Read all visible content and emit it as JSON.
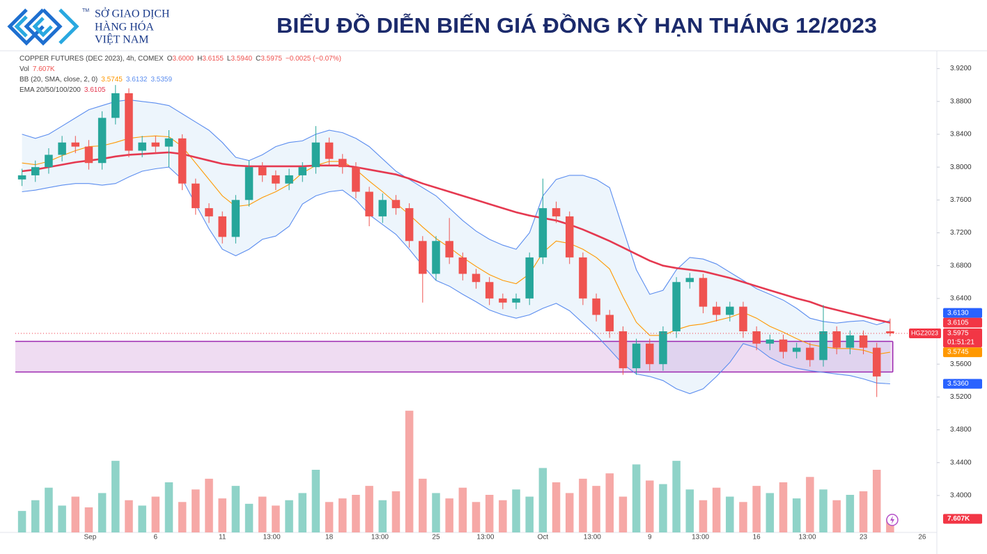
{
  "header": {
    "brand": [
      "SỞ GIAO DỊCH",
      "HÀNG HÓA",
      "VIỆT NAM"
    ],
    "tm": "TM",
    "title": "BIỂU ĐỒ DIỄN BIẾN GIÁ ĐỒNG KỲ HẠN THÁNG 12/2023"
  },
  "chart_data": {
    "type": "candlestick",
    "legend_lines": [
      {
        "label": "COPPER FUTURES (DEC 2023), 4h, COMEX",
        "items": [
          {
            "key": "O",
            "value": "3.6000"
          },
          {
            "key": "H",
            "value": "3.6155"
          },
          {
            "key": "L",
            "value": "3.5940"
          },
          {
            "key": "C",
            "value": "3.5975"
          },
          {
            "key": "",
            "value": "−0.0025 (−0.07%)"
          }
        ]
      },
      {
        "label": "Vol",
        "items": [
          {
            "key": "",
            "value": "7.607K"
          }
        ]
      },
      {
        "label": "BB (20, SMA, close, 2, 0)",
        "items": [
          {
            "key": "",
            "value": "3.5745"
          },
          {
            "key": "",
            "value": "3.6132"
          },
          {
            "key": "",
            "value": "3.5359"
          }
        ]
      },
      {
        "label": "EMA 20/50/100/200",
        "items": [
          {
            "key": "",
            "value": "3.6105"
          }
        ]
      }
    ],
    "legend_colors": [
      "#ef5350",
      "#ef5350",
      "#ff9800",
      "#e53950"
    ],
    "x": [
      0,
      1,
      2,
      3,
      4,
      5,
      6,
      7,
      8,
      9,
      10,
      11,
      12,
      13,
      14,
      15,
      16,
      17,
      18,
      19,
      20,
      21,
      22,
      23,
      24,
      25,
      26,
      27,
      28,
      29,
      30,
      31,
      32,
      33,
      34,
      35,
      36,
      37,
      38,
      39,
      40,
      41,
      42,
      43,
      44,
      45,
      46,
      47,
      48,
      49,
      50,
      51,
      52,
      53,
      54,
      55,
      56,
      57,
      58,
      59,
      60,
      61,
      62,
      63,
      64,
      65
    ],
    "open": [
      3.785,
      3.79,
      3.8,
      3.815,
      3.83,
      3.825,
      3.805,
      3.86,
      3.89,
      3.82,
      3.83,
      3.825,
      3.835,
      3.78,
      3.75,
      3.74,
      3.715,
      3.76,
      3.8,
      3.79,
      3.78,
      3.79,
      3.8,
      3.83,
      3.81,
      3.8,
      3.77,
      3.74,
      3.76,
      3.75,
      3.71,
      3.67,
      3.71,
      3.69,
      3.67,
      3.66,
      3.64,
      3.635,
      3.64,
      3.69,
      3.75,
      3.74,
      3.69,
      3.64,
      3.62,
      3.6,
      3.555,
      3.585,
      3.56,
      3.6,
      3.66,
      3.665,
      3.63,
      3.62,
      3.63,
      3.6,
      3.585,
      3.59,
      3.575,
      3.58,
      3.565,
      3.6,
      3.58,
      3.595,
      3.58,
      3.6
    ],
    "high": [
      3.798,
      3.808,
      3.823,
      3.838,
      3.838,
      3.833,
      3.868,
      3.9,
      3.896,
      3.838,
      3.838,
      3.845,
      3.84,
      3.786,
      3.756,
      3.746,
      3.766,
      3.808,
      3.806,
      3.796,
      3.798,
      3.806,
      3.85,
      3.836,
      3.816,
      3.806,
      3.776,
      3.768,
      3.766,
      3.756,
      3.716,
      3.716,
      3.738,
      3.696,
      3.676,
      3.666,
      3.646,
      3.646,
      3.696,
      3.786,
      3.758,
      3.746,
      3.696,
      3.646,
      3.626,
      3.606,
      3.591,
      3.591,
      3.606,
      3.666,
      3.671,
      3.67,
      3.636,
      3.636,
      3.636,
      3.606,
      3.596,
      3.596,
      3.586,
      3.586,
      3.632,
      3.606,
      3.601,
      3.601,
      3.586,
      3.6155
    ],
    "low": [
      3.777,
      3.782,
      3.792,
      3.807,
      3.817,
      3.797,
      3.797,
      3.852,
      3.812,
      3.812,
      3.817,
      3.8,
      3.772,
      3.742,
      3.732,
      3.707,
      3.707,
      3.752,
      3.782,
      3.772,
      3.772,
      3.782,
      3.792,
      3.802,
      3.792,
      3.762,
      3.728,
      3.732,
      3.742,
      3.702,
      3.635,
      3.662,
      3.682,
      3.662,
      3.652,
      3.632,
      3.627,
      3.627,
      3.632,
      3.682,
      3.732,
      3.682,
      3.632,
      3.612,
      3.592,
      3.547,
      3.547,
      3.552,
      3.552,
      3.592,
      3.652,
      3.622,
      3.612,
      3.612,
      3.592,
      3.577,
      3.577,
      3.567,
      3.567,
      3.557,
      3.557,
      3.572,
      3.572,
      3.572,
      3.52,
      3.594
    ],
    "close": [
      3.79,
      3.8,
      3.815,
      3.83,
      3.825,
      3.805,
      3.86,
      3.89,
      3.82,
      3.83,
      3.825,
      3.835,
      3.78,
      3.75,
      3.74,
      3.715,
      3.76,
      3.8,
      3.79,
      3.78,
      3.79,
      3.8,
      3.83,
      3.81,
      3.8,
      3.77,
      3.74,
      3.76,
      3.75,
      3.71,
      3.67,
      3.71,
      3.69,
      3.67,
      3.66,
      3.64,
      3.635,
      3.64,
      3.69,
      3.75,
      3.74,
      3.69,
      3.64,
      3.62,
      3.6,
      3.555,
      3.585,
      3.56,
      3.6,
      3.66,
      3.665,
      3.63,
      3.62,
      3.63,
      3.6,
      3.585,
      3.59,
      3.575,
      3.58,
      3.565,
      3.6,
      3.58,
      3.595,
      3.58,
      3.545,
      3.5975
    ],
    "up_color": "#26a69a",
    "down_color": "#ef5350",
    "volume": {
      "values": [
        12,
        18,
        25,
        15,
        20,
        14,
        22,
        40,
        18,
        15,
        20,
        28,
        17,
        24,
        30,
        19,
        26,
        16,
        20,
        15,
        18,
        22,
        35,
        17,
        19,
        21,
        26,
        18,
        23,
        68,
        30,
        22,
        19,
        25,
        17,
        21,
        18,
        24,
        20,
        36,
        28,
        22,
        30,
        26,
        33,
        20,
        38,
        29,
        27,
        40,
        24,
        18,
        25,
        20,
        17,
        26,
        22,
        28,
        19,
        31,
        24,
        18,
        21,
        23,
        35,
        7.607
      ],
      "ylim": [
        0,
        70
      ],
      "up_color": "#8fd3c8",
      "down_color": "#f6a8a6",
      "last_label": "7.607K"
    },
    "indicators": [
      {
        "color": "#5b8def",
        "values": [
          3.84,
          3.835,
          3.84,
          3.85,
          3.86,
          3.87,
          3.875,
          3.88,
          3.882,
          3.88,
          3.878,
          3.875,
          3.865,
          3.855,
          3.845,
          3.83,
          3.812,
          3.808,
          3.815,
          3.825,
          3.83,
          3.832,
          3.84,
          3.845,
          3.842,
          3.835,
          3.825,
          3.81,
          3.795,
          3.785,
          3.775,
          3.765,
          3.75,
          3.735,
          3.722,
          3.712,
          3.705,
          3.7,
          3.72,
          3.765,
          3.785,
          3.79,
          3.79,
          3.785,
          3.775,
          3.725,
          3.675,
          3.645,
          3.65,
          3.675,
          3.69,
          3.688,
          3.682,
          3.672,
          3.662,
          3.652,
          3.645,
          3.638,
          3.628,
          3.616,
          3.612,
          3.61,
          3.612,
          3.613,
          3.608,
          3.613
        ]
      },
      {
        "color": "#5b8def",
        "values": [
          3.77,
          3.772,
          3.775,
          3.778,
          3.78,
          3.78,
          3.778,
          3.78,
          3.788,
          3.795,
          3.798,
          3.8,
          3.785,
          3.755,
          3.725,
          3.7,
          3.692,
          3.7,
          3.712,
          3.716,
          3.728,
          3.755,
          3.765,
          3.77,
          3.772,
          3.76,
          3.742,
          3.73,
          3.718,
          3.7,
          3.68,
          3.662,
          3.655,
          3.645,
          3.636,
          3.626,
          3.62,
          3.616,
          3.62,
          3.628,
          3.634,
          3.625,
          3.61,
          3.595,
          3.578,
          3.56,
          3.548,
          3.545,
          3.54,
          3.53,
          3.524,
          3.53,
          3.545,
          3.562,
          3.585,
          3.58,
          3.568,
          3.56,
          3.555,
          3.552,
          3.55,
          3.548,
          3.546,
          3.542,
          3.537,
          3.536
        ]
      },
      {
        "color": "#ff9800",
        "values": [
          3.805,
          3.803,
          3.807,
          3.814,
          3.82,
          3.825,
          3.826,
          3.83,
          3.835,
          3.837,
          3.838,
          3.837,
          3.825,
          3.805,
          3.785,
          3.765,
          3.752,
          3.754,
          3.763,
          3.77,
          3.779,
          3.793,
          3.802,
          3.807,
          3.807,
          3.797,
          3.783,
          3.77,
          3.756,
          3.742,
          3.727,
          3.713,
          3.702,
          3.69,
          3.679,
          3.669,
          3.662,
          3.658,
          3.67,
          3.696,
          3.71,
          3.707,
          3.7,
          3.69,
          3.676,
          3.642,
          3.611,
          3.595,
          3.595,
          3.602,
          3.607,
          3.609,
          3.613,
          3.617,
          3.623,
          3.616,
          3.606,
          3.599,
          3.591,
          3.584,
          3.581,
          3.579,
          3.579,
          3.577,
          3.572,
          3.5745
        ]
      },
      {
        "color": "#e53950",
        "values": [
          3.795,
          3.797,
          3.8,
          3.803,
          3.806,
          3.808,
          3.81,
          3.813,
          3.815,
          3.816,
          3.817,
          3.818,
          3.816,
          3.812,
          3.808,
          3.804,
          3.802,
          3.801,
          3.801,
          3.801,
          3.801,
          3.801,
          3.802,
          3.802,
          3.802,
          3.8,
          3.797,
          3.794,
          3.791,
          3.786,
          3.78,
          3.775,
          3.77,
          3.765,
          3.76,
          3.755,
          3.75,
          3.745,
          3.741,
          3.738,
          3.735,
          3.73,
          3.724,
          3.717,
          3.71,
          3.702,
          3.694,
          3.686,
          3.68,
          3.677,
          3.675,
          3.673,
          3.669,
          3.665,
          3.66,
          3.655,
          3.65,
          3.645,
          3.64,
          3.636,
          3.63,
          3.626,
          3.622,
          3.618,
          3.614,
          3.6105
        ]
      }
    ],
    "band_fill": "#e8f2fb",
    "zone": [
      3.5504,
      3.5877
    ],
    "zone_color": "#9c27b0",
    "xlim": [
      -0.5,
      68.5
    ],
    "xticks": [
      {
        "value": 5.1,
        "label": "Sep"
      },
      {
        "value": 10,
        "label": "6"
      },
      {
        "value": 15,
        "label": "11"
      },
      {
        "value": 18.7,
        "label": "13:00"
      },
      {
        "value": 23,
        "label": "18"
      },
      {
        "value": 26.8,
        "label": "13:00"
      },
      {
        "value": 31,
        "label": "25"
      },
      {
        "value": 34.7,
        "label": "13:00"
      },
      {
        "value": 39,
        "label": "Oct"
      },
      {
        "value": 42.7,
        "label": "13:00"
      },
      {
        "value": 47,
        "label": "9"
      },
      {
        "value": 50.8,
        "label": "13:00"
      },
      {
        "value": 55,
        "label": "16"
      },
      {
        "value": 58.8,
        "label": "13:00"
      },
      {
        "value": 63,
        "label": "23"
      },
      {
        "value": 67.4,
        "label": "26"
      }
    ],
    "ylim": [
      3.355,
      3.94
    ],
    "yticks": [
      {
        "value": 3.92,
        "label": "3.9200"
      },
      {
        "value": 3.88,
        "label": "3.8800"
      },
      {
        "value": 3.84,
        "label": "3.8400"
      },
      {
        "value": 3.8,
        "label": "3.8000"
      },
      {
        "value": 3.76,
        "label": "3.7600"
      },
      {
        "value": 3.72,
        "label": "3.7200"
      },
      {
        "value": 3.68,
        "label": "3.6800"
      },
      {
        "value": 3.64,
        "label": "3.6400"
      },
      {
        "value": 3.56,
        "label": "3.5600"
      },
      {
        "value": 3.52,
        "label": "3.5200"
      },
      {
        "value": 3.48,
        "label": "3.4800"
      },
      {
        "value": 3.44,
        "label": "3.4400"
      },
      {
        "value": 3.4,
        "label": "3.4000"
      }
    ],
    "grid": false,
    "price_badges": [
      {
        "value": 3.613,
        "label": "3.6130",
        "color": "#2962ff"
      },
      {
        "value": 3.6105,
        "label": "3.6105",
        "color": "#f23645"
      },
      {
        "value": 3.5745,
        "label": "3.5745",
        "color": "#ff9800"
      },
      {
        "value": 3.536,
        "label": "3.5360",
        "color": "#2962ff"
      }
    ],
    "current": {
      "value": 3.5975,
      "label": "3.5975",
      "symbol": "HGZ2023",
      "countdown": "01:51:21",
      "color": "#f23645"
    }
  }
}
